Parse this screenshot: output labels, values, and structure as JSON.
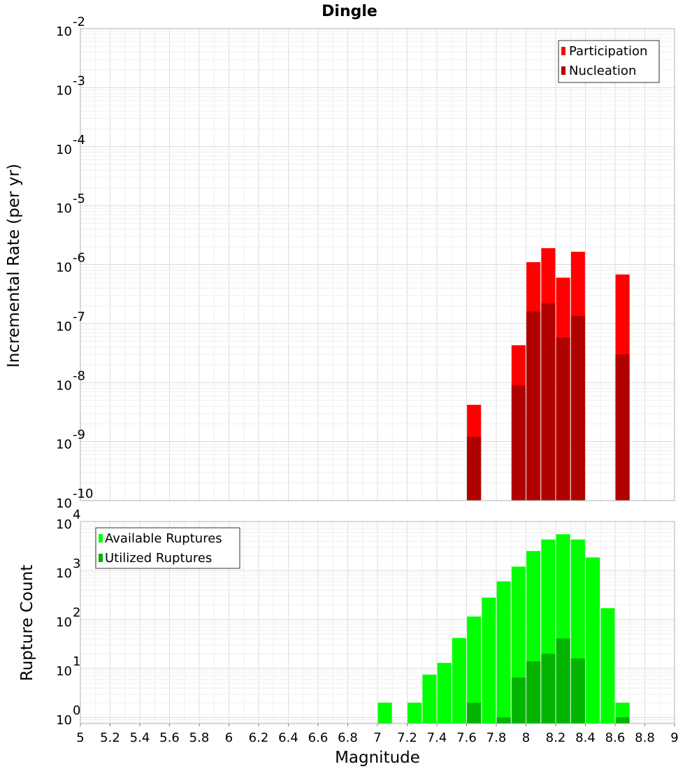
{
  "chart_data": [
    {
      "type": "bar",
      "panel": "top",
      "title": "Dingle",
      "xlabel": "",
      "ylabel": "Incremental Rate (per yr)",
      "yscale": "log",
      "ylim": [
        1e-10,
        0.01
      ],
      "xlim": [
        5,
        9
      ],
      "y_ticks": [
        {
          "base": "10",
          "exp": "-2"
        },
        {
          "base": "10",
          "exp": "-3"
        },
        {
          "base": "10",
          "exp": "-4"
        },
        {
          "base": "10",
          "exp": "-5"
        },
        {
          "base": "10",
          "exp": "-6"
        },
        {
          "base": "10",
          "exp": "-7"
        },
        {
          "base": "10",
          "exp": "-8"
        },
        {
          "base": "10",
          "exp": "-9"
        },
        {
          "base": "10",
          "exp": "-10"
        }
      ],
      "legend_position": "top-right",
      "series": [
        {
          "name": "Participation",
          "color": "#ff0000",
          "x": [
            7.65,
            7.95,
            8.05,
            8.15,
            8.25,
            8.35,
            8.65
          ],
          "values": [
            4.2e-09,
            4.3e-08,
            1.1e-06,
            1.9e-06,
            6e-07,
            1.65e-06,
            6.8e-07
          ]
        },
        {
          "name": "Nucleation",
          "color": "#b00000",
          "x": [
            7.65,
            7.95,
            8.05,
            8.15,
            8.25,
            8.35,
            8.65
          ],
          "values": [
            1.2e-09,
            9e-09,
            1.6e-07,
            2.2e-07,
            5.8e-08,
            1.35e-07,
            3e-08
          ]
        }
      ]
    },
    {
      "type": "bar",
      "panel": "bottom",
      "xlabel": "Magnitude",
      "ylabel": "Rupture Count",
      "yscale": "log",
      "ylim": [
        0.75,
        10000
      ],
      "xlim": [
        5,
        9
      ],
      "x_ticks": [
        "5",
        "5.2",
        "5.4",
        "5.6",
        "5.8",
        "6",
        "6.2",
        "6.4",
        "6.6",
        "6.8",
        "7",
        "7.2",
        "7.4",
        "7.6",
        "7.8",
        "8",
        "8.2",
        "8.4",
        "8.6",
        "8.8",
        "9"
      ],
      "y_ticks": [
        {
          "base": "10",
          "exp": "4"
        },
        {
          "base": "10",
          "exp": "3"
        },
        {
          "base": "10",
          "exp": "2"
        },
        {
          "base": "10",
          "exp": "1"
        },
        {
          "base": "10",
          "exp": "0"
        }
      ],
      "legend_position": "top-left",
      "series": [
        {
          "name": "Available Ruptures",
          "color": "#00ff00",
          "x": [
            7.05,
            7.25,
            7.35,
            7.45,
            7.55,
            7.65,
            7.75,
            7.85,
            7.95,
            8.05,
            8.15,
            8.25,
            8.35,
            8.45,
            8.55,
            8.65
          ],
          "values": [
            2,
            2,
            7.5,
            13,
            42,
            115,
            280,
            600,
            1200,
            2500,
            4300,
            5500,
            4300,
            1850,
            170,
            2
          ]
        },
        {
          "name": "Utilized Ruptures",
          "color": "#00b400",
          "x": [
            7.65,
            7.85,
            7.95,
            8.05,
            8.15,
            8.25,
            8.35,
            8.65
          ],
          "values": [
            2,
            1,
            6.5,
            14,
            20,
            41,
            16,
            1
          ]
        }
      ]
    }
  ]
}
